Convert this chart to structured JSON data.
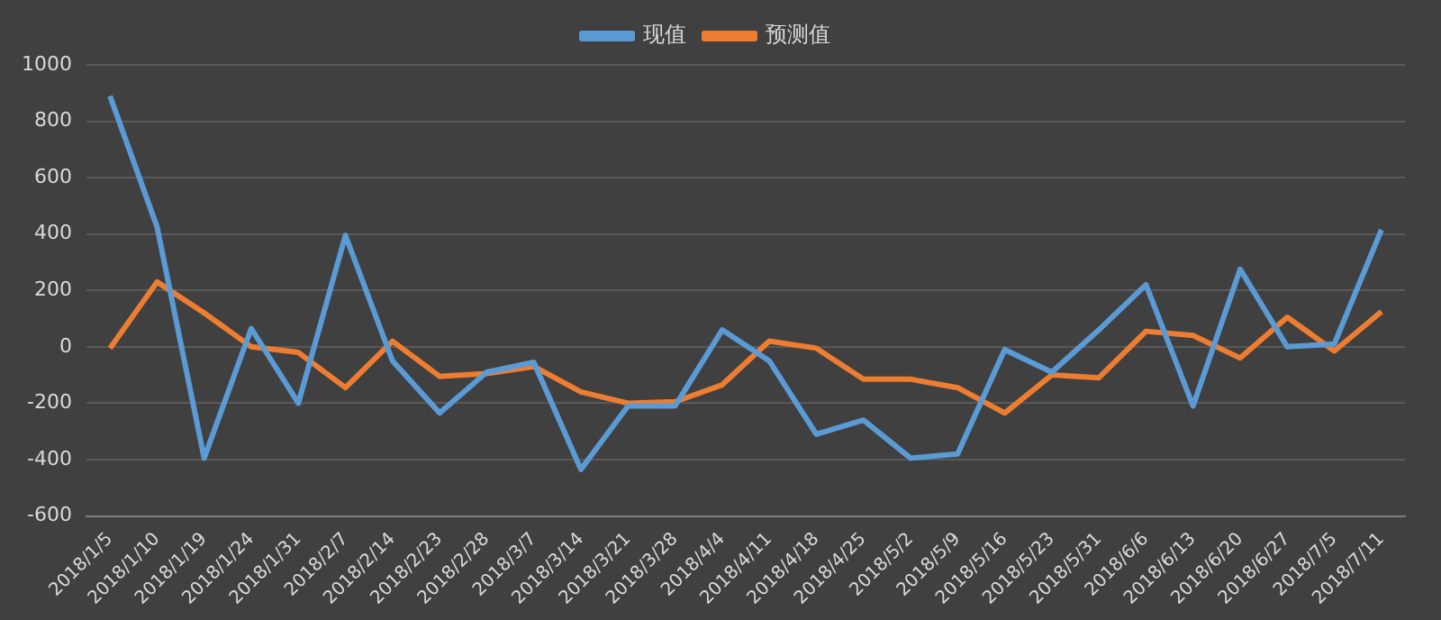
{
  "chart_data": {
    "type": "line",
    "categories": [
      "2018/1/5",
      "2018/1/10",
      "2018/1/19",
      "2018/1/24",
      "2018/1/31",
      "2018/2/7",
      "2018/2/14",
      "2018/2/23",
      "2018/2/28",
      "2018/3/7",
      "2018/3/14",
      "2018/3/21",
      "2018/3/28",
      "2018/4/4",
      "2018/4/11",
      "2018/4/18",
      "2018/4/25",
      "2018/5/2",
      "2018/5/9",
      "2018/5/16",
      "2018/5/23",
      "2018/5/31",
      "2018/6/6",
      "2018/6/13",
      "2018/6/20",
      "2018/6/27",
      "2018/7/5",
      "2018/7/11"
    ],
    "series": [
      {
        "name": "现值",
        "color": "#5b9bd5",
        "values": [
          890,
          425,
          -395,
          65,
          -200,
          395,
          -50,
          -235,
          -90,
          -55,
          -435,
          -210,
          -210,
          60,
          -50,
          -310,
          -260,
          -395,
          -380,
          -10,
          -90,
          60,
          220,
          -210,
          275,
          0,
          10,
          415
        ]
      },
      {
        "name": "预测值",
        "color": "#ed7d31",
        "values": [
          -5,
          230,
          120,
          0,
          -20,
          -145,
          20,
          -105,
          -95,
          -70,
          -160,
          -200,
          -195,
          -135,
          20,
          -5,
          -115,
          -115,
          -145,
          -235,
          -100,
          -110,
          55,
          40,
          -40,
          105,
          -15,
          125
        ]
      }
    ],
    "ylim": [
      -600,
      1000
    ],
    "yticks": [
      -600,
      -400,
      -200,
      0,
      200,
      400,
      600,
      800,
      1000
    ],
    "grid": "y",
    "legend": "top",
    "marker": "none",
    "line_style": "solid"
  }
}
